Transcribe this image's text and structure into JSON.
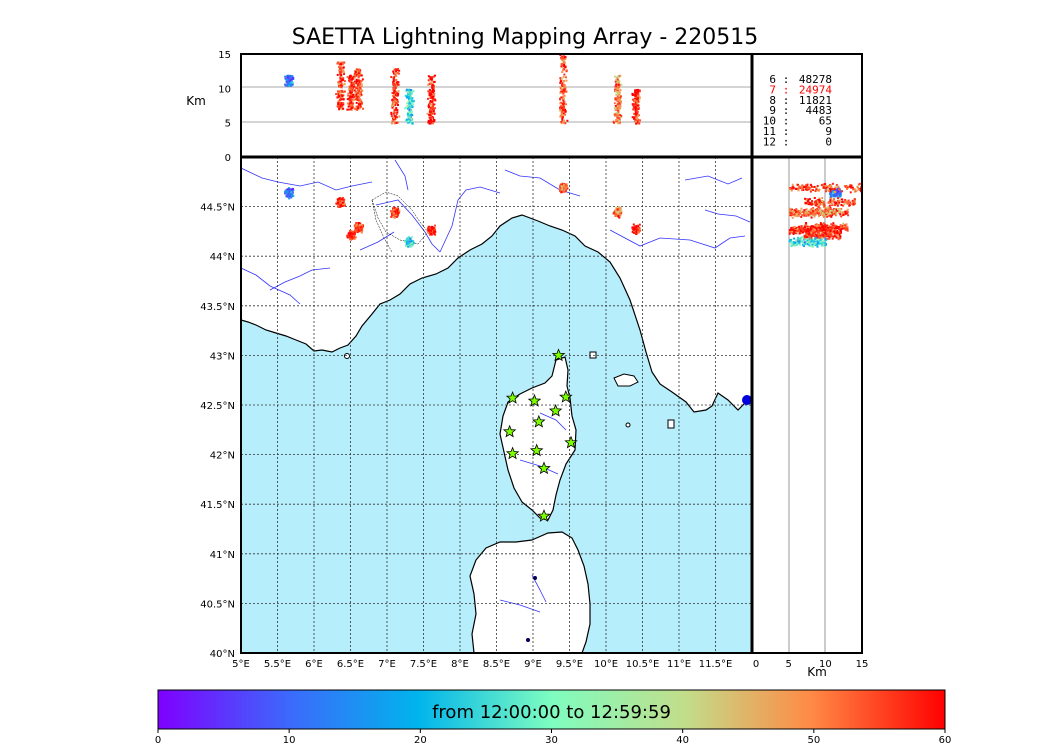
{
  "title": "SAETTA Lightning Mapping Array - 220515",
  "altitude_axis": {
    "unit": "Km",
    "ticks": [
      "0",
      "5",
      "10",
      "15"
    ]
  },
  "map": {
    "lon_ticks": [
      "5°E",
      "5.5°E",
      "6°E",
      "6.5°E",
      "7°E",
      "7.5°E",
      "8°E",
      "8.5°E",
      "9°E",
      "9.5°E",
      "10°E",
      "10.5°E",
      "11°E",
      "11.5°E"
    ],
    "lat_ticks": [
      "40°N",
      "40.5°N",
      "41°N",
      "41.5°N",
      "42°N",
      "42.5°N",
      "43°N",
      "43.5°N",
      "44°N",
      "44.5°N"
    ],
    "sea_color": "#b7eefb",
    "land_color": "#ffffff",
    "station_marker": "star-icon",
    "station_color": "#7cff00",
    "stations": [
      {
        "lon": 9.35,
        "lat": 43.0
      },
      {
        "lon": 8.72,
        "lat": 42.57
      },
      {
        "lon": 9.02,
        "lat": 42.54
      },
      {
        "lon": 9.45,
        "lat": 42.58
      },
      {
        "lon": 9.31,
        "lat": 42.44
      },
      {
        "lon": 9.08,
        "lat": 42.33
      },
      {
        "lon": 8.68,
        "lat": 42.23
      },
      {
        "lon": 9.52,
        "lat": 42.12
      },
      {
        "lon": 9.05,
        "lat": 42.04
      },
      {
        "lon": 8.72,
        "lat": 42.01
      },
      {
        "lon": 9.15,
        "lat": 41.86
      },
      {
        "lon": 9.15,
        "lat": 41.38
      }
    ]
  },
  "source_counts": {
    "rows": [
      {
        "stations": "6",
        "sep": ":",
        "count": "48278",
        "color": "#000000"
      },
      {
        "stations": "7",
        "sep": ":",
        "count": "24974",
        "color": "#ff0000"
      },
      {
        "stations": "8",
        "sep": ":",
        "count": "11821",
        "color": "#000000"
      },
      {
        "stations": "9",
        "sep": ":",
        "count": "4483",
        "color": "#000000"
      },
      {
        "stations": "10",
        "sep": ":",
        "count": "65",
        "color": "#000000"
      },
      {
        "stations": "11",
        "sep": ":",
        "count": "9",
        "color": "#000000"
      },
      {
        "stations": "12",
        "sep": ":",
        "count": "0",
        "color": "#000000"
      }
    ]
  },
  "colorbar": {
    "label": "from 12:00:00 to 12:59:59",
    "ticks": [
      "0",
      "10",
      "20",
      "30",
      "40",
      "50",
      "60"
    ],
    "range": [
      0,
      60
    ],
    "colormap": "rainbow"
  },
  "chart_data": {
    "type": "scatter",
    "title": "SAETTA Lightning Mapping Array - 220515",
    "colorscale": {
      "min": 0,
      "max": 60,
      "unit_text": "from 12:00:00 to 12:59:59"
    },
    "lon_range": [
      5.0,
      12.0
    ],
    "lat_range": [
      40.0,
      45.0
    ],
    "alt_range_km": [
      0,
      15
    ],
    "clusters": [
      {
        "lon": 5.65,
        "lat": 44.65,
        "alt_km": [
          10.5,
          12.0
        ],
        "time": 12
      },
      {
        "lon": 6.35,
        "lat": 44.55,
        "alt_km": [
          7.0,
          14.0
        ],
        "time": 55
      },
      {
        "lon": 6.5,
        "lat": 44.22,
        "alt_km": [
          7.0,
          12.0
        ],
        "time": 58
      },
      {
        "lon": 6.6,
        "lat": 44.3,
        "alt_km": [
          7.0,
          13.0
        ],
        "time": 56
      },
      {
        "lon": 7.1,
        "lat": 44.45,
        "alt_km": [
          5.0,
          13.0
        ],
        "time": 57
      },
      {
        "lon": 7.3,
        "lat": 44.15,
        "alt_km": [
          5.0,
          10.0
        ],
        "time": 24
      },
      {
        "lon": 7.6,
        "lat": 44.27,
        "alt_km": [
          5.0,
          12.0
        ],
        "time": 59
      },
      {
        "lon": 9.4,
        "lat": 44.7,
        "alt_km": [
          5.0,
          15.0
        ],
        "time": 55
      },
      {
        "lon": 10.15,
        "lat": 44.45,
        "alt_km": [
          5.0,
          12.0
        ],
        "time": 50
      },
      {
        "lon": 10.4,
        "lat": 44.28,
        "alt_km": [
          5.0,
          10.0
        ],
        "time": 59
      }
    ]
  }
}
